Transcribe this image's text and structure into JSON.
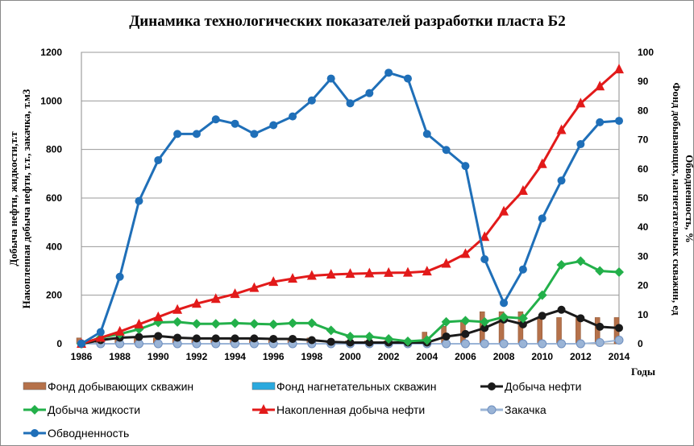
{
  "chart_data": {
    "type": "line",
    "title": "Динамика технологических показателей разработки пласта Б2",
    "ylabel_left_1": "Добыча нефти, жидкости,т.т",
    "ylabel_left_2": "Накопленная добыча нефти, т.т., закачка, т.м3",
    "ylabel_right_1": "Фонд добывающих, нагнетательных скважин, ед",
    "ylabel_right_2": "Обводненность, %",
    "xlabel": "Годы",
    "x": [
      1986,
      1987,
      1988,
      1989,
      1990,
      1991,
      1992,
      1993,
      1994,
      1995,
      1996,
      1997,
      1998,
      1999,
      2000,
      2001,
      2002,
      2003,
      2004,
      2005,
      2006,
      2007,
      2008,
      2009,
      2010,
      2011,
      2012,
      2013,
      2014
    ],
    "x_tick_labels": [
      "1986",
      "1988",
      "1990",
      "1992",
      "1994",
      "1996",
      "1998",
      "2000",
      "2002",
      "2004",
      "2006",
      "2008",
      "2010",
      "2012",
      "2014"
    ],
    "ylim_left": [
      0,
      1200
    ],
    "yticks_left": [
      "0",
      "200",
      "400",
      "600",
      "800",
      "1000",
      "1200"
    ],
    "ylim_right": [
      0,
      100
    ],
    "yticks_right": [
      "0",
      "10",
      "20",
      "30",
      "40",
      "50",
      "60",
      "70",
      "80",
      "90",
      "100"
    ],
    "grid": true,
    "legend_position": "bottom",
    "series": [
      {
        "name": "Фонд добывающих скважин",
        "kind": "bar",
        "axis": "right",
        "color": "#b5714a",
        "values": [
          2,
          2,
          2,
          2,
          2,
          2,
          2,
          2,
          2,
          2,
          2,
          2,
          2,
          1,
          1,
          1,
          1,
          1,
          4,
          6,
          8,
          11,
          11,
          11,
          9,
          9,
          9,
          9,
          9
        ]
      },
      {
        "name": "Фонд нагнетательных скважин",
        "kind": "bar",
        "axis": "right",
        "color": "#2aa9de",
        "values": [
          0,
          0,
          0,
          0,
          0,
          0,
          0,
          0,
          0,
          0,
          0,
          0,
          0,
          0,
          0,
          0,
          0,
          0,
          0,
          0,
          0,
          0,
          0,
          0,
          0,
          0,
          0,
          0,
          0
        ]
      },
      {
        "name": "Добыча нефти",
        "kind": "line",
        "marker": "circle",
        "axis": "left",
        "color": "#1a1a1a",
        "values": [
          0,
          15,
          25,
          28,
          32,
          25,
          22,
          22,
          22,
          22,
          20,
          20,
          15,
          8,
          5,
          5,
          5,
          5,
          5,
          30,
          40,
          65,
          100,
          80,
          115,
          140,
          105,
          70,
          65
        ]
      },
      {
        "name": "Добыча жидкости",
        "kind": "line",
        "marker": "diamond",
        "axis": "left",
        "color": "#23b04a",
        "values": [
          0,
          25,
          40,
          60,
          88,
          90,
          82,
          82,
          85,
          82,
          80,
          85,
          85,
          55,
          30,
          30,
          20,
          10,
          15,
          90,
          95,
          90,
          110,
          105,
          200,
          325,
          340,
          300,
          295
        ]
      },
      {
        "name": "Накопленная добыча нефти",
        "kind": "line",
        "marker": "triangle",
        "axis": "left",
        "color": "#e21a1a",
        "values": [
          0,
          25,
          50,
          80,
          110,
          140,
          165,
          185,
          205,
          230,
          255,
          268,
          280,
          285,
          288,
          290,
          292,
          293,
          298,
          330,
          370,
          440,
          545,
          630,
          740,
          880,
          990,
          1060,
          1130
        ]
      },
      {
        "name": "Закачка",
        "kind": "line",
        "marker": "circle",
        "axis": "left",
        "color": "#9ab4d6",
        "values": [
          0,
          0,
          0,
          0,
          0,
          0,
          0,
          0,
          0,
          0,
          0,
          0,
          0,
          0,
          0,
          0,
          0,
          0,
          0,
          0,
          0,
          0,
          0,
          0,
          0,
          0,
          0,
          5,
          15
        ]
      },
      {
        "name": "Обводненность",
        "kind": "line",
        "marker": "circle",
        "axis": "right",
        "color": "#1f6fb8",
        "values": [
          0,
          4,
          23,
          49,
          63,
          72,
          72,
          77,
          75.5,
          72,
          75,
          78,
          83.5,
          91,
          82.5,
          86,
          93,
          91,
          72,
          66.5,
          61,
          29,
          14,
          25.5,
          43,
          56,
          68.5,
          76,
          76.5
        ]
      }
    ]
  }
}
